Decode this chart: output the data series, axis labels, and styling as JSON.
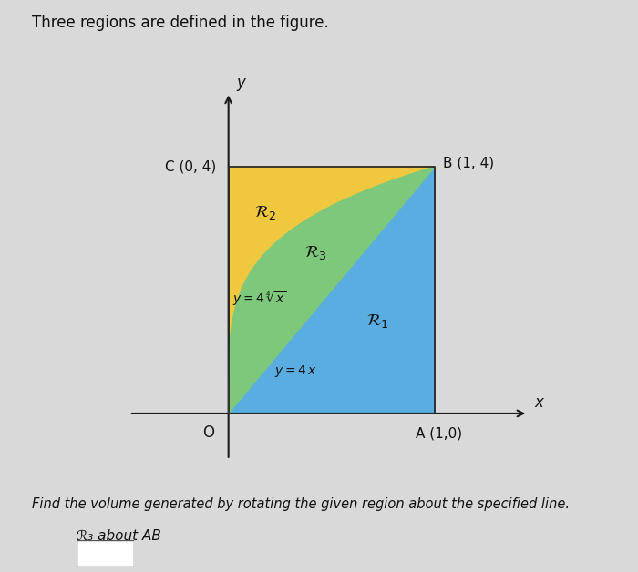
{
  "title": "Three regions are defined in the figure.",
  "subtitle": "Find the volume generated by rotating the given region about the specified line.",
  "subtitle2": "ℛ₃ about AB",
  "color_R1": "#5aade0",
  "color_R2": "#f0c840",
  "color_R3": "#7dc87a",
  "fig_bg": "#d9d9d9",
  "point_labels": {
    "A": "A (1,0)",
    "B": "B (1, 4)",
    "C": "C (0, 4)"
  },
  "origin_label": "O",
  "xlabel": "x",
  "ylabel": "y",
  "xlim": [
    -0.55,
    1.55
  ],
  "ylim": [
    -0.9,
    5.4
  ]
}
